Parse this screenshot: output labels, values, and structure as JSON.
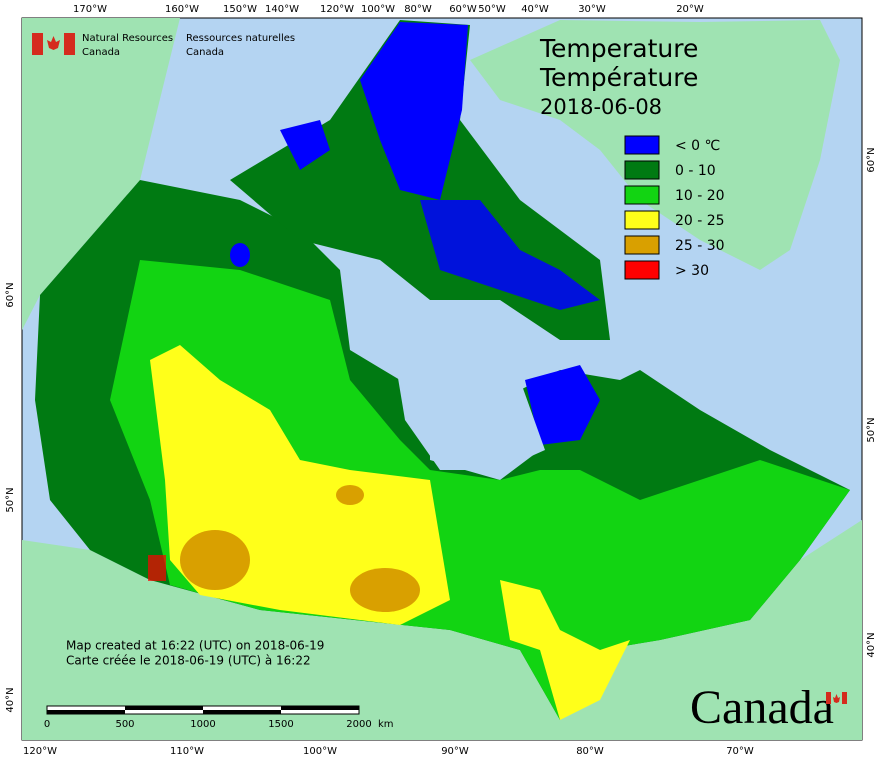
{
  "header": {
    "department_en": [
      "Natural Resources",
      "Canada"
    ],
    "department_fr": [
      "Ressources naturelles",
      "Canada"
    ]
  },
  "title": {
    "lines": [
      "Temperature",
      "Température"
    ],
    "date": "2018-06-08"
  },
  "legend": [
    {
      "label": "< 0 ℃",
      "color": "#0000ff"
    },
    {
      "label": "0 - 10",
      "color": "#007a12"
    },
    {
      "label": "10 - 20",
      "color": "#12d412"
    },
    {
      "label": "20 - 25",
      "color": "#ffff1a"
    },
    {
      "label": "25 - 30",
      "color": "#d9a000"
    },
    {
      "label": "> 30",
      "color": "#ff0000"
    }
  ],
  "graticule": {
    "top": [
      "170°W",
      "160°W",
      "150°W",
      "140°W",
      "120°W",
      "100°W",
      "80°W",
      "60°W",
      "50°W",
      "40°W",
      "30°W",
      "20°W"
    ],
    "bottom": [
      "120°W",
      "110°W",
      "100°W",
      "90°W",
      "80°W",
      "70°W"
    ],
    "left": [
      "60°N",
      "50°N",
      "40°N"
    ],
    "right": [
      "60°N",
      "50°N",
      "40°N"
    ]
  },
  "notes": [
    "Map created at 16:22 (UTC) on 2018-06-19",
    "Carte créée le 2018-06-19 (UTC) à 16:22"
  ],
  "scale_bar": {
    "labels": [
      "0",
      "500",
      "1000",
      "1500",
      "2000"
    ],
    "unit": "km"
  },
  "wordmark": "Canada"
}
